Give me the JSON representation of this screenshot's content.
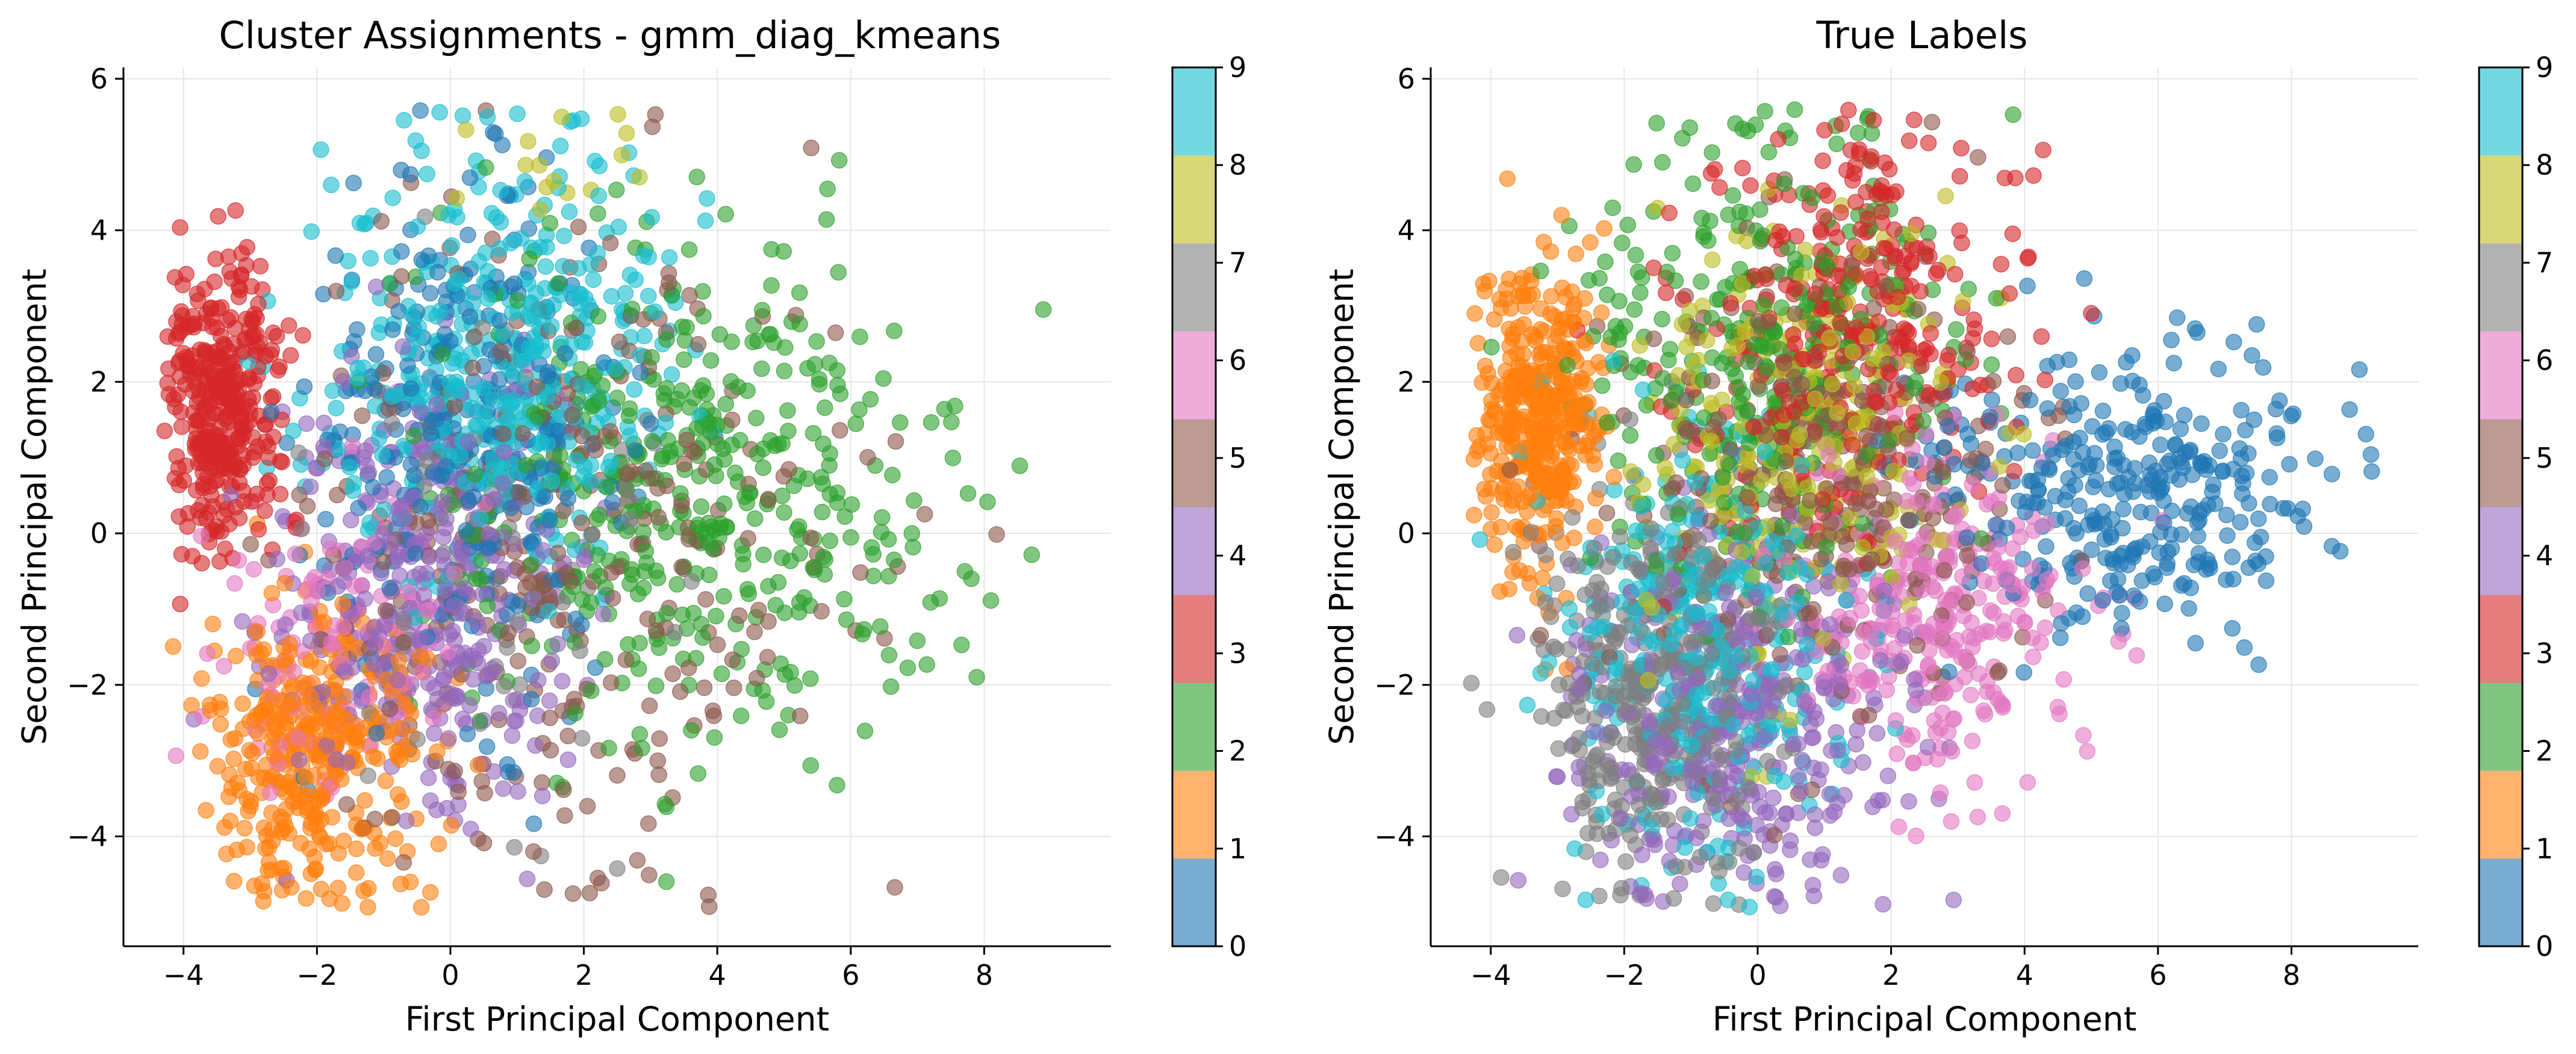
{
  "palette": [
    "#1f77b4",
    "#ff7f0e",
    "#2ca02c",
    "#d62728",
    "#9467bd",
    "#8c564b",
    "#e377c2",
    "#7f7f7f",
    "#bcbd22",
    "#17becf"
  ],
  "chart_data": [
    {
      "type": "scatter",
      "title": "Cluster Assignments - gmm_diag_kmeans",
      "xlabel": "First Principal Component",
      "ylabel": "Second Principal Component",
      "xlim": [
        -4.9,
        9.9
      ],
      "ylim": [
        -5.45,
        6.15
      ],
      "xticks": [
        -4,
        -2,
        0,
        2,
        4,
        6,
        8
      ],
      "xtick_labels": [
        "−4",
        "−2",
        "0",
        "2",
        "4",
        "6",
        "8"
      ],
      "yticks": [
        -4,
        -2,
        0,
        2,
        4,
        6
      ],
      "ytick_labels": [
        "−4",
        "−2",
        "0",
        "2",
        "4",
        "6"
      ],
      "grid": true,
      "colorbar": {
        "min": 0,
        "max": 9,
        "ticks": [
          "0",
          "1",
          "2",
          "3",
          "4",
          "5",
          "6",
          "7",
          "8",
          "9"
        ],
        "colormap": "tab10"
      },
      "point_alpha": 0.6,
      "approx_points_per_class": 1000,
      "clusters": [
        {
          "label": 0,
          "center": [
            0.2,
            1.2
          ],
          "spread": [
            1.2,
            1.6
          ],
          "count": 300
        },
        {
          "label": 1,
          "center": [
            -2.0,
            -2.8
          ],
          "spread": [
            0.9,
            1.0
          ],
          "count": 360
        },
        {
          "label": 2,
          "center": [
            3.8,
            0.5
          ],
          "spread": [
            1.9,
            1.7
          ],
          "count": 440
        },
        {
          "label": 3,
          "center": [
            -3.4,
            1.7
          ],
          "spread": [
            0.45,
            1.0
          ],
          "count": 340
        },
        {
          "label": 4,
          "center": [
            -0.4,
            -0.8
          ],
          "spread": [
            1.1,
            1.4
          ],
          "count": 380
        },
        {
          "label": 5,
          "center": [
            1.8,
            -0.2
          ],
          "spread": [
            1.9,
            2.0
          ],
          "count": 330
        },
        {
          "label": 6,
          "center": [
            -1.6,
            -1.4
          ],
          "spread": [
            0.9,
            1.1
          ],
          "count": 120
        },
        {
          "label": 7,
          "center": [
            0.5,
            -0.5
          ],
          "spread": [
            1.3,
            1.5
          ],
          "count": 60
        },
        {
          "label": 8,
          "center": [
            1.5,
            4.8
          ],
          "spread": [
            0.8,
            0.4
          ],
          "count": 15
        },
        {
          "label": 9,
          "center": [
            0.7,
            2.3
          ],
          "spread": [
            1.3,
            1.4
          ],
          "count": 420
        }
      ]
    },
    {
      "type": "scatter",
      "title": "True Labels",
      "xlabel": "First Principal Component",
      "ylabel": "Second Principal Component",
      "xlim": [
        -4.9,
        9.9
      ],
      "ylim": [
        -5.45,
        6.15
      ],
      "xticks": [
        -4,
        -2,
        0,
        2,
        4,
        6,
        8
      ],
      "xtick_labels": [
        "−4",
        "−2",
        "0",
        "2",
        "4",
        "6",
        "8"
      ],
      "yticks": [
        -4,
        -2,
        0,
        2,
        4,
        6
      ],
      "ytick_labels": [
        "−4",
        "−2",
        "0",
        "2",
        "4",
        "6"
      ],
      "grid": true,
      "colorbar": {
        "min": 0,
        "max": 9,
        "ticks": [
          "0",
          "1",
          "2",
          "3",
          "4",
          "5",
          "6",
          "7",
          "8",
          "9"
        ],
        "colormap": "tab10"
      },
      "point_alpha": 0.6,
      "approx_points_per_class": 1000,
      "clusters": [
        {
          "label": 0,
          "center": [
            5.6,
            0.6
          ],
          "spread": [
            1.5,
            1.0
          ],
          "count": 330
        },
        {
          "label": 1,
          "center": [
            -3.3,
            1.6
          ],
          "spread": [
            0.45,
            1.0
          ],
          "count": 380
        },
        {
          "label": 2,
          "center": [
            0.2,
            2.4
          ],
          "spread": [
            1.3,
            1.5
          ],
          "count": 330
        },
        {
          "label": 3,
          "center": [
            1.4,
            2.6
          ],
          "spread": [
            1.2,
            1.3
          ],
          "count": 330
        },
        {
          "label": 4,
          "center": [
            -0.2,
            -2.4
          ],
          "spread": [
            1.3,
            1.3
          ],
          "count": 360
        },
        {
          "label": 5,
          "center": [
            1.0,
            0.6
          ],
          "spread": [
            1.5,
            1.5
          ],
          "count": 300
        },
        {
          "label": 6,
          "center": [
            2.6,
            -1.0
          ],
          "spread": [
            1.2,
            1.0
          ],
          "count": 300
        },
        {
          "label": 7,
          "center": [
            -1.6,
            -2.2
          ],
          "spread": [
            0.9,
            1.3
          ],
          "count": 360
        },
        {
          "label": 8,
          "center": [
            0.6,
            1.2
          ],
          "spread": [
            1.2,
            1.3
          ],
          "count": 260
        },
        {
          "label": 9,
          "center": [
            -0.8,
            -1.4
          ],
          "spread": [
            1.1,
            1.5
          ],
          "count": 330
        }
      ]
    }
  ]
}
